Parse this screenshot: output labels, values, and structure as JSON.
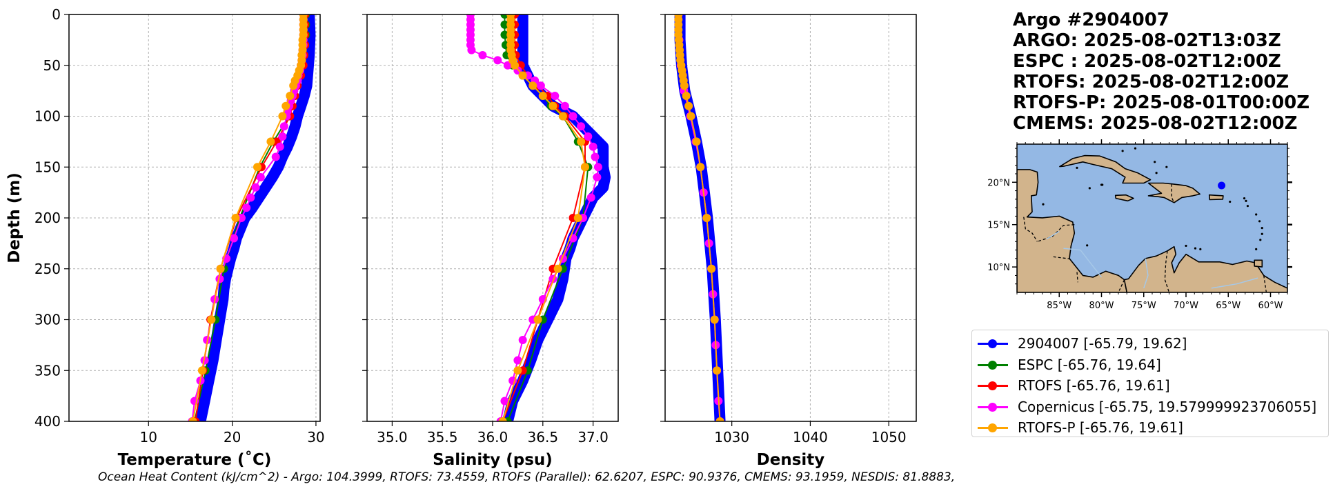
{
  "title_lines": [
    "Argo #2904007",
    "ARGO: 2025-08-02T13:03Z",
    "ESPC : 2025-08-02T12:00Z",
    "RTOFS: 2025-08-02T12:00Z",
    "RTOFS-P: 2025-08-01T00:00Z",
    "CMEMS: 2025-08-02T12:00Z"
  ],
  "footer": "Ocean Heat Content (kJ/cm^2) - Argo: 104.3999,  RTOFS: 73.4559,  RTOFS (Parallel): 62.6207,  ESPC: 90.9376,  CMEMS: 93.1959,  NESDIS: 81.8883,",
  "colors": {
    "argo": "#0000ff",
    "espc": "#008000",
    "rtofs": "#ff0000",
    "copernicus": "#ff00ff",
    "rtofs_p": "#ffa500",
    "ocean": "#94b8e4",
    "land": "#d2b48c"
  },
  "legend": [
    {
      "label": "2904007 [-65.79, 19.62]",
      "color": "#0000ff"
    },
    {
      "label": "ESPC [-65.76, 19.64]",
      "color": "#008000"
    },
    {
      "label": "RTOFS [-65.76, 19.61]",
      "color": "#ff0000"
    },
    {
      "label": "Copernicus [-65.75, 19.579999923706055]",
      "color": "#ff00ff"
    },
    {
      "label": "RTOFS-P [-65.76, 19.61]",
      "color": "#ffa500"
    }
  ],
  "chart_data": [
    {
      "type": "line",
      "xlabel": "Temperature (˚C)",
      "ylabel": "Depth (m)",
      "xlim": [
        0.5,
        30.5
      ],
      "ylim": [
        400,
        0
      ],
      "xticks": [
        10,
        20,
        30
      ],
      "yticks": [
        0,
        50,
        100,
        150,
        200,
        250,
        300,
        350,
        400
      ],
      "grid": true,
      "series": [
        {
          "name": "2904007",
          "color": "#0000ff",
          "thick": true,
          "depth": [
            0,
            20,
            40,
            60,
            70,
            80,
            90,
            100,
            110,
            120,
            130,
            140,
            150,
            160,
            170,
            180,
            190,
            200,
            210,
            220,
            230,
            240,
            250,
            260,
            270,
            280,
            290,
            300,
            320,
            340,
            360,
            380,
            400
          ],
          "values": [
            29.2,
            29.3,
            29.2,
            29.0,
            28.9,
            28.6,
            28.2,
            27.8,
            27.5,
            27.1,
            26.6,
            26.0,
            25.5,
            24.8,
            24.0,
            23.2,
            22.4,
            21.5,
            21.0,
            20.5,
            20.2,
            19.8,
            19.5,
            19.2,
            19.0,
            18.9,
            18.7,
            18.5,
            18.1,
            17.7,
            17.2,
            16.7,
            16.2
          ]
        },
        {
          "name": "ESPC",
          "color": "#008000",
          "depth": [
            0,
            10,
            20,
            30,
            40,
            50,
            60,
            70,
            80,
            90,
            100,
            125,
            150,
            200,
            250,
            300,
            350,
            400
          ],
          "values": [
            28.8,
            28.8,
            28.8,
            28.7,
            28.6,
            28.3,
            27.9,
            27.6,
            27.4,
            27.1,
            26.8,
            24.9,
            23.3,
            20.9,
            19.0,
            18.0,
            16.8,
            15.5
          ]
        },
        {
          "name": "RTOFS",
          "color": "#ff0000",
          "depth": [
            0,
            10,
            20,
            30,
            40,
            50,
            60,
            70,
            80,
            90,
            100,
            125,
            150,
            200,
            250,
            300,
            350,
            400
          ],
          "values": [
            28.7,
            28.7,
            28.7,
            28.7,
            28.6,
            28.5,
            28.2,
            27.8,
            27.5,
            27.2,
            26.9,
            25.3,
            23.5,
            20.5,
            18.6,
            17.4,
            16.5,
            15.6
          ]
        },
        {
          "name": "Copernicus",
          "color": "#ff00ff",
          "depth": [
            0,
            5,
            10,
            15,
            20,
            25,
            30,
            35,
            40,
            45,
            50,
            55,
            60,
            65,
            70,
            75,
            80,
            85,
            90,
            95,
            100,
            110,
            120,
            130,
            140,
            160,
            170,
            180,
            190,
            200,
            220,
            240,
            260,
            280,
            300,
            320,
            340,
            360,
            380,
            400
          ],
          "values": [
            28.5,
            28.5,
            28.5,
            28.5,
            28.5,
            28.5,
            28.5,
            28.4,
            28.4,
            28.3,
            28.2,
            28.1,
            27.9,
            27.8,
            27.6,
            27.4,
            27.2,
            27.0,
            26.8,
            26.6,
            26.5,
            26.2,
            26.0,
            25.7,
            25.2,
            23.4,
            22.8,
            22.2,
            21.7,
            21.1,
            20.2,
            19.3,
            18.5,
            17.9,
            17.5,
            17.0,
            16.7,
            16.2,
            15.5,
            15.2
          ]
        },
        {
          "name": "RTOFS-P",
          "color": "#ffa500",
          "depth": [
            0,
            5,
            10,
            15,
            20,
            25,
            30,
            35,
            40,
            45,
            50,
            55,
            60,
            65,
            70,
            80,
            90,
            100,
            125,
            150,
            200,
            250,
            300,
            350,
            400
          ],
          "values": [
            28.5,
            28.5,
            28.5,
            28.5,
            28.5,
            28.4,
            28.4,
            28.4,
            28.3,
            28.3,
            28.2,
            28.0,
            27.8,
            27.5,
            27.3,
            26.9,
            26.4,
            26.0,
            24.6,
            23.0,
            20.4,
            18.6,
            17.5,
            16.4,
            15.3
          ]
        }
      ]
    },
    {
      "type": "line",
      "xlabel": "Salinity (psu)",
      "ylabel": "",
      "xlim": [
        34.75,
        37.25
      ],
      "ylim": [
        400,
        0
      ],
      "xticks": [
        35.0,
        35.5,
        36.0,
        36.5,
        37.0
      ],
      "yticks": [
        0,
        50,
        100,
        150,
        200,
        250,
        300,
        350,
        400
      ],
      "grid": true,
      "series": [
        {
          "name": "2904007",
          "color": "#0000ff",
          "thick": true,
          "depth": [
            0,
            20,
            40,
            50,
            60,
            70,
            80,
            90,
            100,
            110,
            120,
            130,
            140,
            150,
            160,
            170,
            180,
            190,
            200,
            210,
            220,
            230,
            240,
            260,
            280,
            300,
            320,
            340,
            360,
            380,
            400
          ],
          "values": [
            36.3,
            36.3,
            36.3,
            36.3,
            36.35,
            36.4,
            36.5,
            36.6,
            36.8,
            36.9,
            37.0,
            37.1,
            37.1,
            37.1,
            37.12,
            37.1,
            37.0,
            36.95,
            36.9,
            36.85,
            36.8,
            36.77,
            36.73,
            36.7,
            36.65,
            36.55,
            36.45,
            36.38,
            36.3,
            36.2,
            36.15
          ]
        },
        {
          "name": "ESPC",
          "color": "#008000",
          "depth": [
            0,
            10,
            20,
            30,
            40,
            50,
            60,
            70,
            80,
            90,
            100,
            125,
            150,
            200,
            250,
            300,
            350,
            400
          ],
          "values": [
            36.12,
            36.12,
            36.12,
            36.13,
            36.14,
            36.2,
            36.3,
            36.4,
            36.5,
            36.58,
            36.7,
            36.85,
            36.95,
            36.9,
            36.7,
            36.5,
            36.35,
            36.15
          ]
        },
        {
          "name": "RTOFS",
          "color": "#ff0000",
          "depth": [
            0,
            10,
            20,
            30,
            40,
            50,
            60,
            70,
            80,
            90,
            100,
            125,
            150,
            200,
            250,
            300,
            350,
            400
          ],
          "values": [
            36.22,
            36.22,
            36.22,
            36.22,
            36.23,
            36.28,
            36.35,
            36.45,
            36.55,
            36.62,
            36.72,
            36.92,
            36.92,
            36.8,
            36.6,
            36.45,
            36.3,
            36.1
          ]
        },
        {
          "name": "Copernicus",
          "color": "#ff00ff",
          "depth": [
            0,
            5,
            10,
            15,
            20,
            25,
            30,
            35,
            40,
            45,
            50,
            55,
            60,
            65,
            70,
            80,
            90,
            100,
            110,
            120,
            130,
            140,
            150,
            160,
            180,
            200,
            220,
            240,
            260,
            280,
            300,
            320,
            340,
            360,
            380,
            400
          ],
          "values": [
            35.78,
            35.78,
            35.78,
            35.78,
            35.78,
            35.78,
            35.78,
            35.79,
            35.9,
            36.05,
            36.15,
            36.25,
            36.35,
            36.42,
            36.48,
            36.62,
            36.72,
            36.8,
            36.88,
            36.95,
            37.0,
            37.02,
            37.05,
            37.04,
            36.98,
            36.9,
            36.8,
            36.7,
            36.6,
            36.5,
            36.4,
            36.3,
            36.25,
            36.2,
            36.12,
            36.08
          ]
        },
        {
          "name": "RTOFS-P",
          "color": "#ffa500",
          "depth": [
            0,
            5,
            10,
            15,
            20,
            25,
            30,
            35,
            40,
            45,
            50,
            60,
            70,
            80,
            90,
            100,
            125,
            150,
            200,
            250,
            300,
            350,
            400
          ],
          "values": [
            36.18,
            36.18,
            36.18,
            36.18,
            36.18,
            36.18,
            36.18,
            36.18,
            36.19,
            36.2,
            36.22,
            36.3,
            36.4,
            36.5,
            36.6,
            36.7,
            36.88,
            36.92,
            36.85,
            36.65,
            36.45,
            36.25,
            36.1
          ]
        }
      ]
    },
    {
      "type": "line",
      "xlabel": "Density",
      "ylabel": "",
      "xlim": [
        1021.5,
        1053.5
      ],
      "ylim": [
        400,
        0
      ],
      "xticks": [
        1030,
        1040,
        1050
      ],
      "yticks": [
        0,
        50,
        100,
        150,
        200,
        250,
        300,
        350,
        400
      ],
      "grid": true,
      "series": [
        {
          "name": "2904007",
          "color": "#0000ff",
          "thick": true,
          "depth": [
            0,
            25,
            50,
            75,
            100,
            125,
            150,
            175,
            200,
            225,
            250,
            275,
            300,
            325,
            350,
            375,
            400
          ],
          "values": [
            1023.4,
            1023.4,
            1023.6,
            1024.0,
            1024.8,
            1025.5,
            1026.1,
            1026.5,
            1026.9,
            1027.2,
            1027.5,
            1027.7,
            1027.9,
            1028.05,
            1028.2,
            1028.35,
            1028.5
          ]
        },
        {
          "name": "Copernicus",
          "color": "#ff00ff",
          "depth": [
            0,
            25,
            50,
            75,
            100,
            125,
            150,
            175,
            200,
            225,
            250,
            275,
            300,
            325,
            350,
            380,
            400
          ],
          "values": [
            1023.2,
            1023.3,
            1023.5,
            1023.9,
            1024.7,
            1025.4,
            1026.0,
            1026.4,
            1026.8,
            1027.1,
            1027.4,
            1027.6,
            1027.8,
            1027.95,
            1028.1,
            1028.3,
            1028.5
          ]
        },
        {
          "name": "RTOFS-P",
          "color": "#ffa500",
          "depth": [
            0,
            5,
            10,
            15,
            20,
            25,
            30,
            35,
            40,
            45,
            50,
            55,
            60,
            65,
            70,
            80,
            90,
            100,
            125,
            150,
            200,
            250,
            300,
            350,
            400
          ],
          "values": [
            1023.2,
            1023.2,
            1023.2,
            1023.2,
            1023.2,
            1023.25,
            1023.3,
            1023.35,
            1023.4,
            1023.45,
            1023.55,
            1023.65,
            1023.75,
            1023.85,
            1023.95,
            1024.2,
            1024.5,
            1024.8,
            1025.5,
            1026.0,
            1026.8,
            1027.4,
            1027.8,
            1028.1,
            1028.5
          ]
        }
      ]
    }
  ],
  "map": {
    "lon_range": [
      -90,
      -58
    ],
    "lat_range": [
      7,
      24.5
    ],
    "lon_ticks": [
      "85°W",
      "80°W",
      "75°W",
      "70°W",
      "65°W",
      "60°W"
    ],
    "lon_values": [
      -85,
      -80,
      -75,
      -70,
      -65,
      -60
    ],
    "lat_ticks": [
      "20°N",
      "15°N",
      "10°N"
    ],
    "lat_values": [
      20,
      15,
      10
    ],
    "marker": {
      "lon": -65.79,
      "lat": 19.62,
      "color": "#0000ff"
    }
  }
}
